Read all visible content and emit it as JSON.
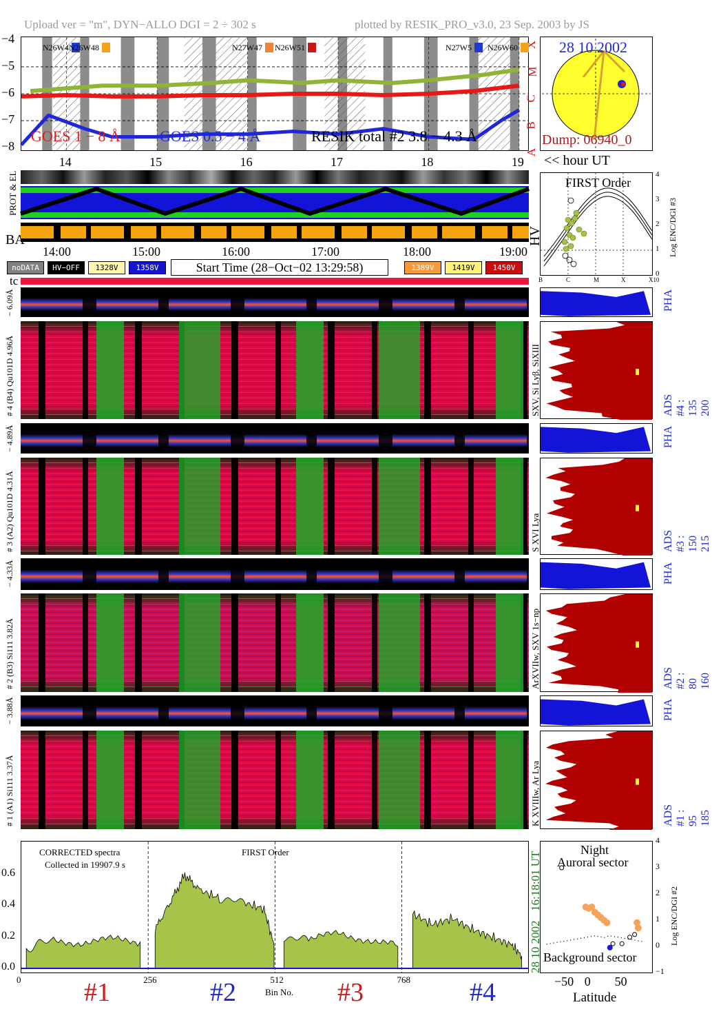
{
  "header": {
    "left": "Upload ver = \"m\", DYN−ALLO DGI =   2 ÷ 302 s",
    "right": "plotted by RESIK_PRO_v3.0, 23 Sep. 2003 by JS"
  },
  "goes": {
    "yticks": [
      "−4",
      "−5",
      "−6",
      "−7",
      "−8"
    ],
    "xticks": [
      "14",
      "15",
      "16",
      "17",
      "18",
      "19"
    ],
    "class_letters": [
      "X",
      "M",
      "C",
      "B",
      "A"
    ],
    "labels": {
      "goes1": "GOES 1 − 8 Å",
      "goes2": "GOES 0.5 − 4 Å",
      "resik": "RESIK total #2 3.8 − 4.3 Å"
    },
    "flares": [
      {
        "label": "N26W4",
        "color": "#1e3bd0"
      },
      {
        "label": "N26W48",
        "color": "#f4a21c"
      },
      {
        "label": "N27W47",
        "color": "#f0823a"
      },
      {
        "label": "N26W51",
        "color": "#c81818"
      },
      {
        "label": "N27W5",
        "color": "#1e3bd0"
      },
      {
        "label": "N26W60",
        "color": "#f4a21c"
      }
    ],
    "hour_unit": "<< hour UT"
  },
  "sun": {
    "date": "28 10 2002",
    "dump": "Dump: 06940_0"
  },
  "status": {
    "prot_el": "PROT & EL",
    "ba": "BA",
    "hv": "HV",
    "time_ticks": [
      "14:00",
      "15:00",
      "16:00",
      "17:00",
      "18:00",
      "19:00"
    ],
    "start_time": "Start Time (28−Oct−02 13:29:58)",
    "legend": [
      {
        "label": "noDATA",
        "bg": "#808080",
        "fg": "#ffffff"
      },
      {
        "label": "HV−OFF",
        "bg": "#000000",
        "fg": "#ffffff"
      },
      {
        "label": "1328V",
        "bg": "#fff6b0",
        "fg": "#000000"
      },
      {
        "label": "1358V",
        "bg": "#1414d0",
        "fg": "#ffffff"
      },
      {
        "label": "1389V",
        "bg": "#f79a3a",
        "fg": "#ffffff"
      },
      {
        "label": "1419V",
        "bg": "#fff27a",
        "fg": "#000000"
      },
      {
        "label": "1450V",
        "bg": "#c80e0e",
        "fg": "#ffffff"
      }
    ],
    "tc": "tc"
  },
  "first_order": {
    "title": "FIRST Order",
    "ylabel": "Log ENC/DGI #3",
    "yticks": [
      "4",
      "3",
      "2",
      "1",
      "0"
    ],
    "xticks": [
      "B",
      "C",
      "M",
      "X",
      "X10"
    ]
  },
  "detectors": [
    {
      "pha_label": "− 6.09Å",
      "label": "# 4 (B4) Qu101D 4.96Å",
      "lines": "SXV, Si Lyβ, SiXIII",
      "ads": "ADS #4 :  135 200",
      "pha": "PHA"
    },
    {
      "pha_label": "− 4.89Å",
      "label": "# 3 (A2) Qu101D 4.31Å",
      "lines": "S XVI Lya",
      "ads": "ADS #3 :  150 215",
      "pha": "PHA"
    },
    {
      "pha_label": "− 4.33Å",
      "label": "# 2 (B3) Si111 3.82Å",
      "lines": "ArXVIIw, SXV 1s−np",
      "ads": "ADS #2 :  80 160",
      "pha": "PHA"
    },
    {
      "pha_label": "− 3.88Å",
      "label": "# 1 (A1) Si111 3.37Å",
      "lines": "K XVIIIw, Ar Lya",
      "ads": "ADS #1 :  95 185",
      "pha": "PHA"
    }
  ],
  "spectrum": {
    "note1": "CORRECTED spectra",
    "note2": "Collected in 19907.9 s",
    "order": "FIRST Order",
    "yticks": [
      "0.6",
      "0.4",
      "0.2",
      "0.0"
    ],
    "xticks": [
      "0",
      "256",
      "512",
      "768"
    ],
    "xlabel": "Bin No.",
    "side1": "16:18:01 UT",
    "side2": "28 10 2002",
    "channels": [
      "#1",
      "#2",
      "#3",
      "#4"
    ],
    "channel_colors": [
      "#d01818",
      "#1e28c8",
      "#d01818",
      "#1e28c8"
    ]
  },
  "orbit": {
    "night": "Night",
    "auroral": "Auroral sector",
    "background": "Background sector",
    "xlabel": "Latitude",
    "xticks": [
      "−50",
      "0",
      "50"
    ],
    "yticks": [
      "4",
      "3",
      "2",
      "1",
      "0",
      "−1"
    ],
    "ylabel": "Log ENC/DGI #2"
  },
  "chart_data": [
    {
      "type": "line",
      "xlabel": "",
      "x_range": [
        13.5,
        19.1
      ],
      "ylim": [
        -8.1,
        -3.9
      ],
      "log_scale": true,
      "series": [
        {
          "name": "GOES 1 − 8 Å",
          "color": "#e81818",
          "x": [
            13.5,
            14.0,
            14.5,
            15.0,
            15.5,
            16.0,
            16.5,
            17.0,
            17.5,
            18.0,
            18.5,
            19.0
          ],
          "y": [
            -6.1,
            -6.05,
            -6.1,
            -6.1,
            -6.05,
            -6.05,
            -6.0,
            -6.0,
            -6.05,
            -6.0,
            -5.9,
            -5.7
          ]
        },
        {
          "name": "GOES 0.5 − 4 Å",
          "color": "#1e28d8",
          "x": [
            13.5,
            13.8,
            14.2,
            14.5,
            15.0,
            15.5,
            16.0,
            16.5,
            17.0,
            17.5,
            18.0,
            18.5,
            18.8,
            19.0
          ],
          "y": [
            -7.9,
            -6.8,
            -7.3,
            -7.6,
            -7.6,
            -7.5,
            -7.5,
            -7.4,
            -7.5,
            -7.3,
            -7.6,
            -7.7,
            -7.0,
            -6.6
          ]
        },
        {
          "name": "RESIK total #2 3.8 − 4.3 Å",
          "color": "#8fb43a",
          "x": [
            13.6,
            14.0,
            14.4,
            15.0,
            15.6,
            16.0,
            16.6,
            17.0,
            17.6,
            18.0,
            18.6,
            19.0
          ],
          "y": [
            -5.9,
            -5.8,
            -5.7,
            -5.7,
            -5.6,
            -5.5,
            -5.6,
            -5.5,
            -5.6,
            -5.5,
            -5.3,
            -5.1
          ]
        }
      ]
    },
    {
      "type": "area",
      "title": "",
      "xlabel": "Bin No.",
      "ylim": [
        0,
        0.75
      ],
      "x_range": [
        0,
        1023
      ],
      "channel_boundaries": [
        256,
        512,
        768
      ],
      "series": [
        {
          "name": "#1",
          "x": [
            10,
            60,
            120,
            180,
            240
          ],
          "y": [
            0.13,
            0.18,
            0.17,
            0.18,
            0.17
          ]
        },
        {
          "name": "#2",
          "x": [
            270,
            300,
            330,
            360,
            400,
            450,
            490,
            510
          ],
          "y": [
            0.25,
            0.42,
            0.6,
            0.5,
            0.45,
            0.42,
            0.38,
            0.15
          ]
        },
        {
          "name": "#3",
          "x": [
            530,
            580,
            640,
            700,
            760
          ],
          "y": [
            0.2,
            0.18,
            0.22,
            0.19,
            0.14
          ]
        },
        {
          "name": "#4",
          "x": [
            790,
            830,
            870,
            910,
            950,
            990,
            1010
          ],
          "y": [
            0.35,
            0.28,
            0.32,
            0.25,
            0.2,
            0.15,
            0.08
          ]
        }
      ]
    },
    {
      "type": "scatter",
      "xlabel": "Latitude",
      "ylabel": "Log ENC/DGI #2",
      "xlim": [
        -90,
        95
      ],
      "ylim": [
        -1,
        4
      ],
      "series": [
        {
          "name": "",
          "color": "#f4a35a",
          "x": [
            -15,
            -10,
            -5,
            0,
            5,
            10,
            15,
            20,
            70,
            72
          ],
          "y": [
            1.5,
            1.45,
            1.5,
            1.3,
            1.2,
            1.1,
            1.0,
            0.9,
            0.9,
            0.7
          ]
        },
        {
          "name": "",
          "color": "#1818d8",
          "x": [
            25
          ],
          "y": [
            -0.05
          ]
        }
      ]
    }
  ]
}
